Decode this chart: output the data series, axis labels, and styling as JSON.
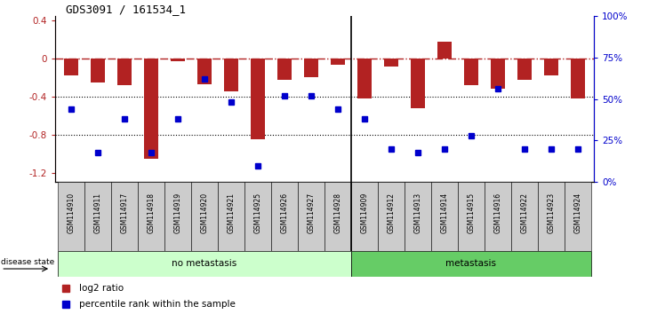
{
  "title": "GDS3091 / 161534_1",
  "samples": [
    "GSM114910",
    "GSM114911",
    "GSM114917",
    "GSM114918",
    "GSM114919",
    "GSM114920",
    "GSM114921",
    "GSM114925",
    "GSM114926",
    "GSM114927",
    "GSM114928",
    "GSM114909",
    "GSM114912",
    "GSM114913",
    "GSM114914",
    "GSM114915",
    "GSM114916",
    "GSM114922",
    "GSM114923",
    "GSM114924"
  ],
  "log2_ratio": [
    -0.18,
    -0.25,
    -0.28,
    -1.05,
    -0.03,
    -0.27,
    -0.35,
    -0.85,
    -0.22,
    -0.2,
    -0.07,
    -0.42,
    -0.08,
    -0.52,
    0.18,
    -0.28,
    -0.32,
    -0.22,
    -0.18,
    -0.42
  ],
  "percentile_rank": [
    44,
    18,
    38,
    18,
    38,
    62,
    48,
    10,
    52,
    52,
    44,
    38,
    20,
    18,
    20,
    28,
    56,
    20,
    20,
    20
  ],
  "no_metastasis_count": 11,
  "metastasis_count": 9,
  "ylim_left": [
    -1.3,
    0.45
  ],
  "ylim_right": [
    0,
    100
  ],
  "bar_color": "#b22222",
  "dot_color": "#0000cc",
  "dotted_lines": [
    -0.4,
    -0.8
  ],
  "left_ticks": [
    -1.2,
    -0.8,
    -0.4,
    0,
    0.4
  ],
  "right_ticks": [
    0,
    25,
    50,
    75,
    100
  ],
  "right_tick_labels": [
    "0%",
    "25%",
    "50%",
    "75%",
    "100%"
  ],
  "no_meta_color": "#ccffcc",
  "meta_color": "#66cc66",
  "sample_box_color": "#cccccc",
  "label_log2": "log2 ratio",
  "label_percentile": "percentile rank within the sample"
}
